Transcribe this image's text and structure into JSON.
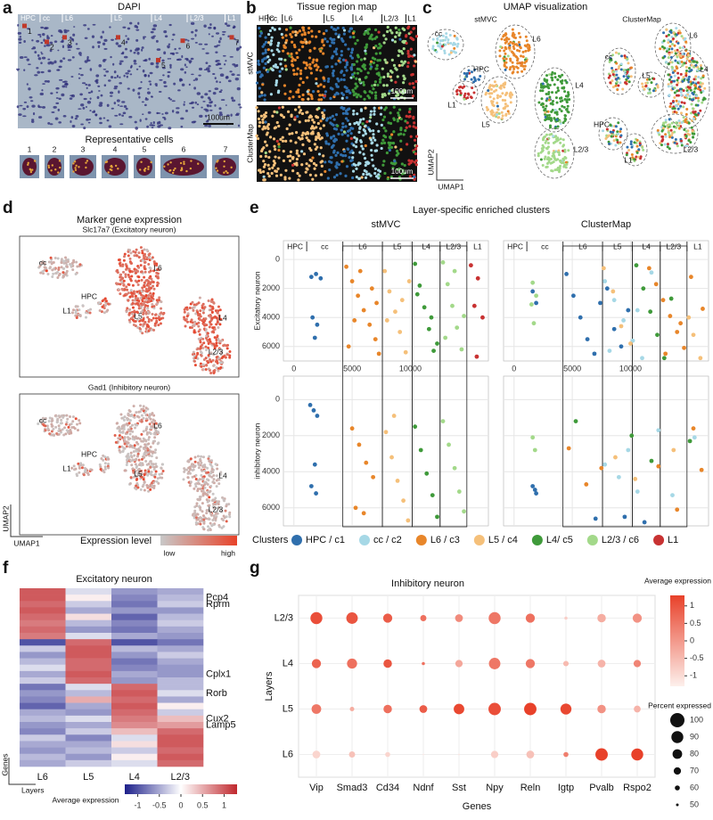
{
  "figure": {
    "a": {
      "letter": "a",
      "title": "DAPI",
      "regions": [
        "HPC",
        "cc",
        "L6",
        "L5",
        "L4",
        "L2/3",
        "L1"
      ],
      "cell_marks": [
        "1",
        "2",
        "3",
        "4",
        "5",
        "6",
        "7"
      ],
      "scale_bar": "100um",
      "cells_title": "Representative cells",
      "cells": [
        "1",
        "2",
        "3",
        "4",
        "5",
        "6",
        "7"
      ]
    },
    "b": {
      "letter": "b",
      "title": "Tissue region map",
      "regions": [
        "HPC",
        "cc",
        "L6",
        "L5",
        "L4",
        "L2/3",
        "L1"
      ],
      "rows": [
        "stMVC",
        "ClusterMap"
      ],
      "scale_bar": "100um"
    },
    "c": {
      "letter": "c",
      "title": "UMAP visualization",
      "plots": [
        {
          "title": "stMVC",
          "clusters": [
            "cc",
            "HPC",
            "L1",
            "L5",
            "L6",
            "L4",
            "L2/3"
          ]
        },
        {
          "title": "ClusterMap",
          "clusters": [
            "cc",
            "HPC",
            "L1",
            "L5",
            "L6",
            "L4",
            "L2/3"
          ]
        }
      ],
      "x_label": "UMAP1",
      "y_label": "UMAP2"
    },
    "d": {
      "letter": "d",
      "title": "Marker gene expression",
      "plots": [
        {
          "title": "Slc17a7 (Excitatory neuron)",
          "clusters": [
            "cc",
            "HPC",
            "L1",
            "L5",
            "L6",
            "L4",
            "L2/3"
          ]
        },
        {
          "title": "Gad1 (Inhibitory neuron)",
          "clusters": [
            "cc",
            "HPC",
            "L1",
            "L5",
            "L6",
            "L4",
            "L2/3"
          ]
        }
      ],
      "x_label": "UMAP1",
      "y_label": "UMAP2",
      "legend_title": "Expression level",
      "legend_low": "low",
      "legend_high": "high"
    }
  },
  "chart_data": [
    {
      "type": "scatter",
      "letter": "e",
      "title": "Layer-specific enriched clusters",
      "columns": [
        "stMVC",
        "ClusterMap"
      ],
      "rows": [
        "Excitatory neuron",
        "inhibitory neuron"
      ],
      "regions": [
        "HPC",
        "cc",
        "L6",
        "L5",
        "L4",
        "L2/3",
        "L1"
      ],
      "xlim": [
        -900,
        16700
      ],
      "ylim": [
        -1300,
        7000
      ],
      "y_inverted": true,
      "xticks": [
        0,
        5000,
        10000
      ],
      "yticks": [
        0,
        2000,
        4000,
        6000
      ],
      "grid": true,
      "legend_title": "Clusters",
      "series": [
        {
          "name": "HPC / c1",
          "color": "#2f6fad",
          "panels": [
            {
              "x": [
                1500,
                1900,
                2300,
                1600,
                2000,
                1800
              ],
              "y": [
                1200,
                1000,
                1300,
                4000,
                4500,
                5400
              ]
            },
            {
              "x": [
                4500,
                5100,
                5700,
                6300,
                6900,
                7400,
                8000,
                8600,
                9200,
                9800,
                1600,
                1900
              ],
              "y": [
                1000,
                2500,
                4000,
                5500,
                6500,
                3000,
                2000,
                4800,
                6000,
                3500,
                2200,
                3000
              ]
            },
            {
              "x": [
                1400,
                1700,
                2000,
                1800,
                1500,
                1900
              ],
              "y": [
                300,
                600,
                900,
                3600,
                4800,
                5200
              ]
            },
            {
              "x": [
                1600,
                1900,
                1800,
                7000,
                9500,
                11200
              ],
              "y": [
                4800,
                5200,
                5000,
                6600,
                6500,
                6800
              ]
            }
          ]
        },
        {
          "name": "cc / c2",
          "color": "#a6d8e6",
          "panels": [
            {
              "x": [],
              "y": []
            },
            {
              "x": [
                7800,
                8600,
                9400,
                10200,
                11000,
                11800,
                8200,
                10600
              ],
              "y": [
                1500,
                2800,
                4200,
                5600,
                6800,
                900,
                6300,
                3500
              ]
            },
            {
              "x": [],
              "y": []
            },
            {
              "x": [
                7800,
                9000,
                9800,
                10600,
                12400,
                13600,
                15500
              ],
              "y": [
                3600,
                4300,
                2800,
                5100,
                1700,
                5300,
                2100
              ]
            }
          ]
        },
        {
          "name": "L6 / c3",
          "color": "#e8862a",
          "panels": [
            {
              "x": [
                4500,
                5000,
                5500,
                6000,
                6500,
                7000,
                7300,
                4700,
                5700,
                6700,
                7100,
                5200
              ],
              "y": [
                500,
                1500,
                2500,
                3500,
                4500,
                5500,
                6500,
                6000,
                800,
                2000,
                3000,
                4200
              ]
            },
            {
              "x": [
                11600,
                12200,
                12800,
                13400,
                14000,
                14600,
                15200,
                16200,
                13000,
                14300
              ],
              "y": [
                600,
                1700,
                2800,
                3900,
                5000,
                6100,
                1200,
                3400,
                6500,
                4400
              ]
            },
            {
              "x": [
                5000,
                5600,
                6200,
                6800,
                5300,
                6000
              ],
              "y": [
                1600,
                2500,
                3500,
                4300,
                6000,
                6300
              ]
            },
            {
              "x": [
                4700,
                6200,
                7500,
                12400,
                14000,
                15400,
                16100
              ],
              "y": [
                2700,
                4700,
                3800,
                3700,
                6100,
                1600,
                3900
              ]
            }
          ]
        },
        {
          "name": "L5 / c4",
          "color": "#f5c07a",
          "panels": [
            {
              "x": [
                7800,
                8200,
                8700,
                9100,
                9600,
                9900,
                8000,
                9300
              ],
              "y": [
                800,
                2200,
                3600,
                5000,
                6400,
                1500,
                4200,
                2800
              ]
            },
            {
              "x": [
                7700,
                8500,
                9200,
                10000,
                15400,
                16000,
                15000
              ],
              "y": [
                600,
                2200,
                4600,
                5800,
                5200,
                6800,
                4000
              ]
            },
            {
              "x": [
                7900,
                8400,
                8900,
                9400,
                9800,
                8600
              ],
              "y": [
                1800,
                3200,
                4500,
                5600,
                6700,
                900
              ]
            },
            {
              "x": [
                8700,
                10400,
                13700
              ],
              "y": [
                3200,
                4400,
                2800
              ]
            }
          ]
        },
        {
          "name": "L4/ c5",
          "color": "#3f9a3a",
          "panels": [
            {
              "x": [
                10400,
                10800,
                11200,
                11600,
                12000,
                12300,
                10600,
                11800
              ],
              "y": [
                300,
                1800,
                3300,
                4800,
                6300,
                5800,
                2400,
                4000
              ]
            },
            {
              "x": [
                10500,
                11100,
                11700,
                12300,
                12900,
                13500
              ],
              "y": [
                400,
                2000,
                3600,
                5200,
                6800,
                2700
              ]
            },
            {
              "x": [
                10400,
                10900,
                11400,
                11900,
                12300
              ],
              "y": [
                1500,
                2800,
                4100,
                5300,
                6500
              ]
            },
            {
              "x": [
                5300,
                10100,
                11800,
                15100
              ],
              "y": [
                1200,
                2000,
                3400,
                2300
              ]
            }
          ]
        },
        {
          "name": "L2/3 / c6",
          "color": "#a3d98a",
          "panels": [
            {
              "x": [
                12800,
                13200,
                13600,
                14000,
                14400,
                14600,
                13000,
                13800
              ],
              "y": [
                200,
                1700,
                3200,
                4700,
                6200,
                3900,
                5400,
                800
              ]
            },
            {
              "x": [
                1600,
                1900,
                1700,
                1500
              ],
              "y": [
                1600,
                2500,
                4400,
                3100
              ]
            },
            {
              "x": [
                12800,
                13300,
                13800,
                14200,
                14600
              ],
              "y": [
                1200,
                2500,
                3800,
                5100,
                6200
              ]
            },
            {
              "x": [
                1600,
                1800
              ],
              "y": [
                2100,
                2800
              ]
            }
          ]
        },
        {
          "name": "L1",
          "color": "#c83232",
          "panels": [
            {
              "x": [
                15200,
                15800,
                15500,
                16200,
                15700
              ],
              "y": [
                400,
                1300,
                3200,
                4000,
                6700
              ]
            },
            {
              "x": [],
              "y": []
            },
            {
              "x": [],
              "y": []
            },
            {
              "x": [],
              "y": []
            }
          ]
        }
      ]
    },
    {
      "type": "heatmap",
      "letter": "f",
      "title": "Excitatory neuron",
      "columns": [
        "L6",
        "L5",
        "L4",
        "L2/3"
      ],
      "rows": [
        null,
        "Pcp4",
        "Rprm",
        null,
        null,
        null,
        null,
        null,
        null,
        null,
        null,
        null,
        null,
        "Cplx1",
        null,
        null,
        "Rorb",
        null,
        null,
        null,
        "Cux2",
        "Lamp5",
        null,
        null,
        null,
        null,
        null,
        null
      ],
      "values": [
        [
          1,
          -0.2,
          -0.6,
          -0.5
        ],
        [
          1,
          0.1,
          -0.7,
          -0.4
        ],
        [
          0.9,
          -0.3,
          -0.8,
          -0.3
        ],
        [
          1,
          -0.5,
          -0.6,
          -0.6
        ],
        [
          0.9,
          0.2,
          -0.9,
          -0.4
        ],
        [
          0.8,
          -0.4,
          -0.7,
          -0.3
        ],
        [
          0.9,
          -0.6,
          -0.8,
          -0.5
        ],
        [
          0.8,
          -0.2,
          -0.5,
          -0.6
        ],
        [
          -1,
          0.9,
          -1,
          -0.8
        ],
        [
          -0.3,
          1,
          -0.4,
          -0.5
        ],
        [
          -0.6,
          1,
          -0.6,
          -0.3
        ],
        [
          -0.4,
          0.9,
          -0.8,
          -0.5
        ],
        [
          -0.2,
          0.9,
          -0.7,
          -0.6
        ],
        [
          -0.5,
          1,
          -0.5,
          -0.6
        ],
        [
          -0.3,
          0.9,
          -0.6,
          -0.4
        ],
        [
          -0.8,
          -0.2,
          0.9,
          -0.4
        ],
        [
          -0.6,
          -0.4,
          1,
          -0.2
        ],
        [
          -0.7,
          0.5,
          0.9,
          -0.5
        ],
        [
          -0.9,
          -0.5,
          1,
          0.1
        ],
        [
          -0.5,
          -0.6,
          0.9,
          -0.3
        ],
        [
          -0.4,
          -0.2,
          0.8,
          0.4
        ],
        [
          -0.6,
          -0.5,
          0.7,
          0.6
        ],
        [
          -0.7,
          -0.3,
          0.4,
          0.9
        ],
        [
          -0.3,
          -0.7,
          -0.2,
          1
        ],
        [
          -0.5,
          -0.5,
          0.2,
          1
        ],
        [
          -0.6,
          -0.4,
          -0.3,
          0.9
        ],
        [
          -0.4,
          -0.6,
          0.1,
          1
        ],
        [
          -0.5,
          -0.3,
          -0.2,
          0.9
        ]
      ],
      "x_label": "Layers",
      "y_label": "Genes",
      "colorbar_title": "Average expression",
      "clim": [
        -1.3,
        1.3
      ],
      "colorbar_ticks": [
        -1,
        -0.5,
        0,
        0.5,
        1
      ],
      "color_low": "#1c1f8a",
      "color_mid": "#ffffff",
      "color_high": "#c0282d"
    },
    {
      "type": "dotplot",
      "letter": "g",
      "title": "Inhibitory neuron",
      "categories": [
        "Vip",
        "Smad3",
        "Cd34",
        "Ndnf",
        "Sst",
        "Npy",
        "Reln",
        "Igtp",
        "Pvalb",
        "Rspo2"
      ],
      "rows": [
        "L2/3",
        "L4",
        "L5",
        "L6"
      ],
      "values": [
        [
          1.1,
          1.0,
          0.9,
          0.6,
          0.2,
          0.5,
          0.6,
          -0.8,
          -0.3,
          0.1
        ],
        [
          0.8,
          0.6,
          1.0,
          0.6,
          -0.2,
          0.5,
          0.5,
          -0.5,
          -0.4,
          0.3
        ],
        [
          0.5,
          -0.3,
          0.6,
          0.9,
          1.2,
          1.1,
          1.3,
          1.2,
          0.1,
          -0.4
        ],
        [
          -0.9,
          -0.6,
          -0.9,
          -1.2,
          -1.1,
          -0.8,
          -0.6,
          0.4,
          1.3,
          1.3
        ]
      ],
      "sizes": [
        [
          90,
          88,
          78,
          65,
          72,
          90,
          78,
          52,
          75,
          78
        ],
        [
          78,
          82,
          75,
          52,
          70,
          88,
          78,
          62,
          72,
          70
        ],
        [
          80,
          58,
          75,
          72,
          84,
          92,
          92,
          86,
          75,
          68
        ],
        [
          72,
          65,
          60,
          45,
          45,
          70,
          72,
          60,
          92,
          90
        ]
      ],
      "x_label": "Genes",
      "y_label": "Layers",
      "color_title": "Average expression",
      "size_title": "Percent expressed",
      "clim": [
        -1.3,
        1.3
      ],
      "colorbar_ticks": [
        1,
        0.5,
        0,
        -0.5,
        -1
      ],
      "size_ticks": [
        100,
        90,
        80,
        70,
        60,
        50
      ],
      "color_low": "#fdf0ec",
      "color_high": "#e8412a"
    }
  ]
}
